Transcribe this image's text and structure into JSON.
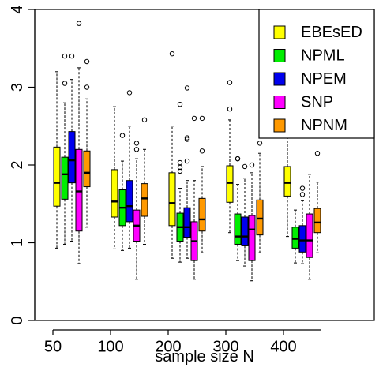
{
  "chart_data": {
    "type": "boxplot",
    "title": "",
    "xlabel": "sample size N",
    "ylabel": "",
    "ylim": [
      0,
      4
    ],
    "yticks": [
      "0",
      "1",
      "2",
      "3",
      "4"
    ],
    "categories": [
      "50",
      "100",
      "200",
      "300",
      "400"
    ],
    "grid": false,
    "legend_position": "top-right",
    "series": [
      {
        "name": "EBEsED",
        "color": "#ffff00",
        "boxes": [
          {
            "min": 0.93,
            "q1": 1.47,
            "median": 1.77,
            "q3": 2.23,
            "max": 3.2,
            "outliers": []
          },
          {
            "min": 0.92,
            "q1": 1.33,
            "median": 1.53,
            "q3": 1.94,
            "max": 2.75,
            "outliers": []
          },
          {
            "min": 0.8,
            "q1": 1.22,
            "median": 1.51,
            "q3": 1.9,
            "max": 2.5,
            "outliers": [
              3.43
            ]
          },
          {
            "min": 1.13,
            "q1": 1.52,
            "median": 1.77,
            "q3": 1.99,
            "max": 2.58,
            "outliers": [
              2.72,
              3.06
            ]
          },
          {
            "min": 1.08,
            "q1": 1.6,
            "median": 1.77,
            "q3": 1.98,
            "max": 2.35,
            "outliers": []
          }
        ]
      },
      {
        "name": "NPML",
        "color": "#00ee00",
        "boxes": [
          {
            "min": 0.98,
            "q1": 1.56,
            "median": 1.88,
            "q3": 2.1,
            "max": 2.8,
            "outliers": [
              3.05,
              3.4
            ]
          },
          {
            "min": 0.9,
            "q1": 1.22,
            "median": 1.45,
            "q3": 1.68,
            "max": 2.05,
            "outliers": [
              2.38
            ]
          },
          {
            "min": 0.75,
            "q1": 1.02,
            "median": 1.2,
            "q3": 1.38,
            "max": 1.7,
            "outliers": [
              1.92,
              1.97,
              2.03,
              2.78
            ]
          },
          {
            "min": 0.77,
            "q1": 0.98,
            "median": 1.08,
            "q3": 1.37,
            "max": 1.75,
            "outliers": [
              2.08,
              2.08
            ]
          },
          {
            "min": 0.74,
            "q1": 0.93,
            "median": 1.05,
            "q3": 1.2,
            "max": 1.42,
            "outliers": []
          }
        ]
      },
      {
        "name": "NPEM",
        "color": "#0000ee",
        "boxes": [
          {
            "min": 1.02,
            "q1": 1.77,
            "median": 2.06,
            "q3": 2.43,
            "max": 3.1,
            "outliers": [
              3.4
            ]
          },
          {
            "min": 0.93,
            "q1": 1.27,
            "median": 1.47,
            "q3": 1.8,
            "max": 2.5,
            "outliers": [
              2.93
            ]
          },
          {
            "min": 0.8,
            "q1": 1.07,
            "median": 1.2,
            "q3": 1.45,
            "max": 1.8,
            "outliers": [
              2.05,
              2.33,
              2.35,
              2.99
            ]
          },
          {
            "min": 0.7,
            "q1": 0.96,
            "median": 1.08,
            "q3": 1.33,
            "max": 1.83,
            "outliers": [
              1.98
            ]
          },
          {
            "min": 0.73,
            "q1": 0.88,
            "median": 1.03,
            "q3": 1.22,
            "max": 1.54,
            "outliers": [
              1.62,
              1.7
            ]
          }
        ]
      },
      {
        "name": "SNP",
        "color": "#ff00ff",
        "boxes": [
          {
            "min": 0.73,
            "q1": 1.15,
            "median": 1.66,
            "q3": 2.2,
            "max": 3.25,
            "outliers": [
              3.82
            ]
          },
          {
            "min": 0.53,
            "q1": 1.02,
            "median": 1.22,
            "q3": 1.42,
            "max": 2.08,
            "outliers": [
              2.2,
              2.28
            ]
          },
          {
            "min": 0.53,
            "q1": 0.77,
            "median": 1.02,
            "q3": 1.27,
            "max": 1.8,
            "outliers": [
              2.6
            ]
          },
          {
            "min": 0.51,
            "q1": 0.77,
            "median": 1.17,
            "q3": 1.35,
            "max": 1.9,
            "outliers": [
              2.0
            ]
          },
          {
            "min": 0.53,
            "q1": 0.81,
            "median": 1.03,
            "q3": 1.37,
            "max": 1.88,
            "outliers": []
          }
        ]
      },
      {
        "name": "NPNM",
        "color": "#ff9900",
        "boxes": [
          {
            "min": 1.2,
            "q1": 1.72,
            "median": 1.9,
            "q3": 2.18,
            "max": 2.85,
            "outliers": [
              3.0,
              3.33
            ]
          },
          {
            "min": 0.98,
            "q1": 1.34,
            "median": 1.57,
            "q3": 1.76,
            "max": 2.2,
            "outliers": [
              2.58
            ]
          },
          {
            "min": 0.87,
            "q1": 1.15,
            "median": 1.3,
            "q3": 1.57,
            "max": 1.98,
            "outliers": [
              2.18,
              2.6
            ]
          },
          {
            "min": 0.87,
            "q1": 1.1,
            "median": 1.31,
            "q3": 1.55,
            "max": 2.15,
            "outliers": [
              2.28
            ]
          },
          {
            "min": 0.87,
            "q1": 1.13,
            "median": 1.26,
            "q3": 1.44,
            "max": 1.78,
            "outliers": [
              2.15
            ]
          }
        ]
      }
    ]
  }
}
